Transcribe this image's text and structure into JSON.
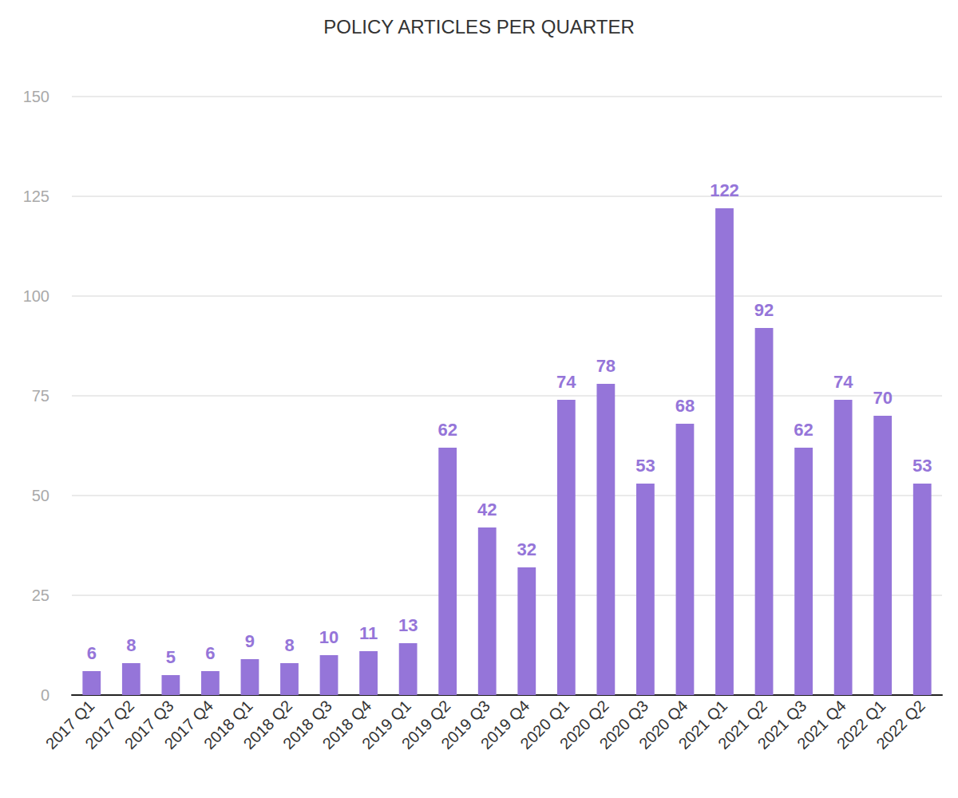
{
  "chart_data": {
    "type": "bar",
    "title": "POLICY ARTICLES PER QUARTER",
    "categories": [
      "2017 Q1",
      "2017 Q2",
      "2017 Q3",
      "2017 Q4",
      "2018 Q1",
      "2018 Q2",
      "2018 Q3",
      "2018 Q4",
      "2019 Q1",
      "2019 Q2",
      "2019 Q3",
      "2019 Q4",
      "2020 Q1",
      "2020 Q2",
      "2020 Q3",
      "2020 Q4",
      "2021 Q1",
      "2021 Q2",
      "2021 Q3",
      "2021 Q4",
      "2022 Q1",
      "2022 Q2"
    ],
    "values": [
      6,
      8,
      5,
      6,
      9,
      8,
      10,
      11,
      13,
      62,
      42,
      32,
      74,
      78,
      53,
      68,
      122,
      92,
      62,
      74,
      70,
      53
    ],
    "color": "#9575d9",
    "ylim": [
      0,
      150
    ],
    "yticks": [
      0,
      25,
      50,
      75,
      100,
      125,
      150
    ],
    "grid": true,
    "data_labels": true
  }
}
